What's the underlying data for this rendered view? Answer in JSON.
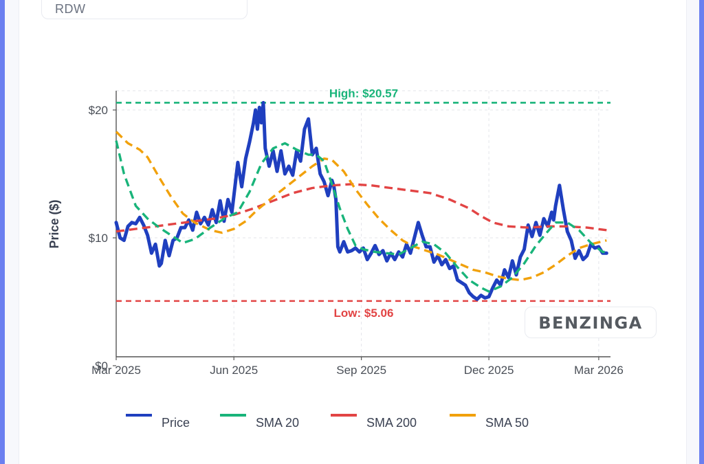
{
  "ticker": "RDW",
  "watermark": "BENZINGA",
  "colors": {
    "price": "#1f3fbf",
    "sma20": "#19b47a",
    "sma200": "#e24444",
    "sma50": "#f1a10c",
    "high": "#19b47a",
    "low": "#e24444"
  },
  "chart_data": {
    "type": "line",
    "title": "",
    "xlabel": "",
    "ylabel": "Price ($)",
    "x_range": [
      0,
      12.6
    ],
    "ylim": [
      0,
      21.5
    ],
    "x_unit": "months since 2025-03-01",
    "x_ticks": [
      {
        "x": 0,
        "label": "Mar 2025"
      },
      {
        "x": 3,
        "label": "Jun 2025"
      },
      {
        "x": 6.25,
        "label": "Sep 2025"
      },
      {
        "x": 9.5,
        "label": "Dec 2025"
      },
      {
        "x": 12.3,
        "label": "Mar 2026"
      }
    ],
    "y_ticks": [
      {
        "y": 0,
        "label": "$0"
      },
      {
        "y": 10,
        "label": "$10"
      },
      {
        "y": 20,
        "label": "$20"
      }
    ],
    "reference_lines": [
      {
        "name": "high",
        "y": 20.57,
        "label": "High: $20.57",
        "color": "#19b47a"
      },
      {
        "name": "low",
        "y": 5.06,
        "label": "Low: $5.06",
        "color": "#e24444"
      }
    ],
    "legend": {
      "position": "bottom",
      "items": [
        {
          "key": "price",
          "label": "Price"
        },
        {
          "key": "sma20",
          "label": "SMA 20"
        },
        {
          "key": "sma200",
          "label": "SMA 200"
        },
        {
          "key": "sma50",
          "label": "SMA 50"
        }
      ]
    },
    "series": [
      {
        "name": "Price",
        "key": "price",
        "dash": false,
        "width": 5,
        "points": [
          [
            0.0,
            11.2
          ],
          [
            0.1,
            10.0
          ],
          [
            0.2,
            9.8
          ],
          [
            0.3,
            10.9
          ],
          [
            0.4,
            11.2
          ],
          [
            0.5,
            11.1
          ],
          [
            0.6,
            11.6
          ],
          [
            0.7,
            11.0
          ],
          [
            0.8,
            10.2
          ],
          [
            0.9,
            8.8
          ],
          [
            1.0,
            9.5
          ],
          [
            1.1,
            7.8
          ],
          [
            1.15,
            8.0
          ],
          [
            1.25,
            9.8
          ],
          [
            1.35,
            8.6
          ],
          [
            1.45,
            9.8
          ],
          [
            1.55,
            10.0
          ],
          [
            1.65,
            10.8
          ],
          [
            1.75,
            10.8
          ],
          [
            1.85,
            11.4
          ],
          [
            1.95,
            10.6
          ],
          [
            2.05,
            12.0
          ],
          [
            2.15,
            11.1
          ],
          [
            2.25,
            11.6
          ],
          [
            2.35,
            11.0
          ],
          [
            2.45,
            12.2
          ],
          [
            2.55,
            11.2
          ],
          [
            2.65,
            12.9
          ],
          [
            2.75,
            11.3
          ],
          [
            2.85,
            13.0
          ],
          [
            2.95,
            12.0
          ],
          [
            3.0,
            13.3
          ],
          [
            3.1,
            15.9
          ],
          [
            3.2,
            14.0
          ],
          [
            3.3,
            16.2
          ],
          [
            3.4,
            17.5
          ],
          [
            3.5,
            19.0
          ],
          [
            3.55,
            20.0
          ],
          [
            3.6,
            18.5
          ],
          [
            3.65,
            20.2
          ],
          [
            3.7,
            19.0
          ],
          [
            3.75,
            20.57
          ],
          [
            3.8,
            17.0
          ],
          [
            3.9,
            15.6
          ],
          [
            4.0,
            16.8
          ],
          [
            4.1,
            15.2
          ],
          [
            4.2,
            16.8
          ],
          [
            4.3,
            15.0
          ],
          [
            4.4,
            15.6
          ],
          [
            4.5,
            14.9
          ],
          [
            4.6,
            16.8
          ],
          [
            4.7,
            16.0
          ],
          [
            4.8,
            18.5
          ],
          [
            4.9,
            19.3
          ],
          [
            5.0,
            16.5
          ],
          [
            5.1,
            17.0
          ],
          [
            5.2,
            15.0
          ],
          [
            5.3,
            14.4
          ],
          [
            5.4,
            13.3
          ],
          [
            5.5,
            14.5
          ],
          [
            5.55,
            14.0
          ],
          [
            5.6,
            13.0
          ],
          [
            5.65,
            9.3
          ],
          [
            5.7,
            8.9
          ],
          [
            5.8,
            9.7
          ],
          [
            5.9,
            8.9
          ],
          [
            6.0,
            9.0
          ],
          [
            6.1,
            9.2
          ],
          [
            6.2,
            8.9
          ],
          [
            6.3,
            9.2
          ],
          [
            6.4,
            8.3
          ],
          [
            6.5,
            8.8
          ],
          [
            6.6,
            9.4
          ],
          [
            6.7,
            8.7
          ],
          [
            6.8,
            9.0
          ],
          [
            6.9,
            8.2
          ],
          [
            7.0,
            8.8
          ],
          [
            7.1,
            8.3
          ],
          [
            7.2,
            8.9
          ],
          [
            7.3,
            8.5
          ],
          [
            7.4,
            9.5
          ],
          [
            7.5,
            8.8
          ],
          [
            7.6,
            10.0
          ],
          [
            7.7,
            11.2
          ],
          [
            7.8,
            10.2
          ],
          [
            7.9,
            9.3
          ],
          [
            8.0,
            9.3
          ],
          [
            8.1,
            8.1
          ],
          [
            8.2,
            8.6
          ],
          [
            8.3,
            7.9
          ],
          [
            8.4,
            8.3
          ],
          [
            8.5,
            7.6
          ],
          [
            8.6,
            7.8
          ],
          [
            8.7,
            6.7
          ],
          [
            8.8,
            6.5
          ],
          [
            8.9,
            6.3
          ],
          [
            9.0,
            5.7
          ],
          [
            9.1,
            5.4
          ],
          [
            9.2,
            5.2
          ],
          [
            9.3,
            5.5
          ],
          [
            9.4,
            5.3
          ],
          [
            9.5,
            5.4
          ],
          [
            9.6,
            6.1
          ],
          [
            9.7,
            6.7
          ],
          [
            9.8,
            6.3
          ],
          [
            9.9,
            7.5
          ],
          [
            10.0,
            6.9
          ],
          [
            10.1,
            8.2
          ],
          [
            10.2,
            7.1
          ],
          [
            10.3,
            8.5
          ],
          [
            10.4,
            9.1
          ],
          [
            10.5,
            11.0
          ],
          [
            10.6,
            10.1
          ],
          [
            10.7,
            11.2
          ],
          [
            10.8,
            10.2
          ],
          [
            10.9,
            11.5
          ],
          [
            11.0,
            10.9
          ],
          [
            11.1,
            12.0
          ],
          [
            11.15,
            11.4
          ],
          [
            11.2,
            12.5
          ],
          [
            11.3,
            14.1
          ],
          [
            11.4,
            12.2
          ],
          [
            11.5,
            10.5
          ],
          [
            11.6,
            9.8
          ],
          [
            11.7,
            8.4
          ],
          [
            11.8,
            9.0
          ],
          [
            11.9,
            8.3
          ],
          [
            12.0,
            8.6
          ],
          [
            12.1,
            9.5
          ],
          [
            12.2,
            9.2
          ],
          [
            12.3,
            9.3
          ],
          [
            12.4,
            8.8
          ],
          [
            12.5,
            8.8
          ]
        ]
      },
      {
        "name": "SMA 20",
        "key": "sma20",
        "dash": true,
        "width": 3.4,
        "points": [
          [
            0.0,
            17.6
          ],
          [
            0.2,
            15.0
          ],
          [
            0.5,
            12.5
          ],
          [
            0.8,
            11.5
          ],
          [
            1.1,
            10.8
          ],
          [
            1.4,
            10.2
          ],
          [
            1.7,
            9.6
          ],
          [
            2.0,
            9.9
          ],
          [
            2.4,
            10.8
          ],
          [
            2.8,
            11.6
          ],
          [
            3.1,
            12.0
          ],
          [
            3.4,
            13.6
          ],
          [
            3.7,
            15.8
          ],
          [
            4.0,
            17.0
          ],
          [
            4.3,
            17.4
          ],
          [
            4.6,
            16.9
          ],
          [
            4.9,
            16.5
          ],
          [
            5.1,
            16.5
          ],
          [
            5.3,
            16.0
          ],
          [
            5.5,
            14.2
          ],
          [
            5.7,
            12.3
          ],
          [
            5.9,
            10.7
          ],
          [
            6.1,
            9.4
          ],
          [
            6.3,
            9.1
          ],
          [
            6.6,
            8.9
          ],
          [
            6.9,
            8.8
          ],
          [
            7.2,
            8.7
          ],
          [
            7.5,
            9.2
          ],
          [
            7.8,
            9.7
          ],
          [
            8.1,
            9.5
          ],
          [
            8.4,
            8.8
          ],
          [
            8.7,
            7.7
          ],
          [
            9.0,
            6.7
          ],
          [
            9.3,
            6.1
          ],
          [
            9.5,
            5.8
          ],
          [
            9.8,
            6.2
          ],
          [
            10.1,
            6.9
          ],
          [
            10.4,
            8.0
          ],
          [
            10.7,
            9.4
          ],
          [
            11.0,
            10.5
          ],
          [
            11.2,
            11.2
          ],
          [
            11.5,
            11.2
          ],
          [
            11.8,
            10.6
          ],
          [
            12.1,
            9.6
          ],
          [
            12.4,
            8.9
          ],
          [
            12.5,
            8.9
          ]
        ]
      },
      {
        "name": "SMA 200",
        "key": "sma200",
        "dash": true,
        "width": 3.4,
        "points": [
          [
            0.0,
            10.5
          ],
          [
            0.5,
            10.7
          ],
          [
            1.0,
            10.9
          ],
          [
            1.5,
            11.1
          ],
          [
            2.0,
            11.3
          ],
          [
            2.5,
            11.5
          ],
          [
            3.0,
            11.8
          ],
          [
            3.5,
            12.3
          ],
          [
            4.0,
            12.9
          ],
          [
            4.5,
            13.5
          ],
          [
            5.0,
            13.9
          ],
          [
            5.5,
            14.1
          ],
          [
            6.0,
            14.2
          ],
          [
            6.5,
            14.1
          ],
          [
            7.0,
            13.9
          ],
          [
            7.5,
            13.7
          ],
          [
            8.0,
            13.5
          ],
          [
            8.5,
            13.0
          ],
          [
            9.0,
            12.3
          ],
          [
            9.3,
            11.7
          ],
          [
            9.6,
            11.2
          ],
          [
            10.0,
            10.9
          ],
          [
            10.5,
            10.8
          ],
          [
            11.0,
            10.9
          ],
          [
            11.5,
            10.9
          ],
          [
            12.0,
            10.8
          ],
          [
            12.5,
            10.6
          ]
        ]
      },
      {
        "name": "SMA 50",
        "key": "sma50",
        "dash": true,
        "width": 3.4,
        "points": [
          [
            0.0,
            18.3
          ],
          [
            0.3,
            17.4
          ],
          [
            0.6,
            16.9
          ],
          [
            0.8,
            16.3
          ],
          [
            1.1,
            14.7
          ],
          [
            1.4,
            13.2
          ],
          [
            1.7,
            11.9
          ],
          [
            2.0,
            11.2
          ],
          [
            2.4,
            10.6
          ],
          [
            2.7,
            10.4
          ],
          [
            3.0,
            10.7
          ],
          [
            3.3,
            11.3
          ],
          [
            3.6,
            12.2
          ],
          [
            4.0,
            13.2
          ],
          [
            4.5,
            14.4
          ],
          [
            5.0,
            15.6
          ],
          [
            5.3,
            16.2
          ],
          [
            5.5,
            16.1
          ],
          [
            5.8,
            15.2
          ],
          [
            6.1,
            13.8
          ],
          [
            6.4,
            12.6
          ],
          [
            6.7,
            11.5
          ],
          [
            7.0,
            10.6
          ],
          [
            7.3,
            9.8
          ],
          [
            7.6,
            9.3
          ],
          [
            7.9,
            9.0
          ],
          [
            8.2,
            8.7
          ],
          [
            8.5,
            8.3
          ],
          [
            8.8,
            7.9
          ],
          [
            9.1,
            7.5
          ],
          [
            9.4,
            7.3
          ],
          [
            9.7,
            7.0
          ],
          [
            10.0,
            6.8
          ],
          [
            10.3,
            6.7
          ],
          [
            10.6,
            6.9
          ],
          [
            10.9,
            7.3
          ],
          [
            11.2,
            7.9
          ],
          [
            11.5,
            8.6
          ],
          [
            11.8,
            9.2
          ],
          [
            12.1,
            9.5
          ],
          [
            12.5,
            9.8
          ]
        ]
      }
    ]
  }
}
